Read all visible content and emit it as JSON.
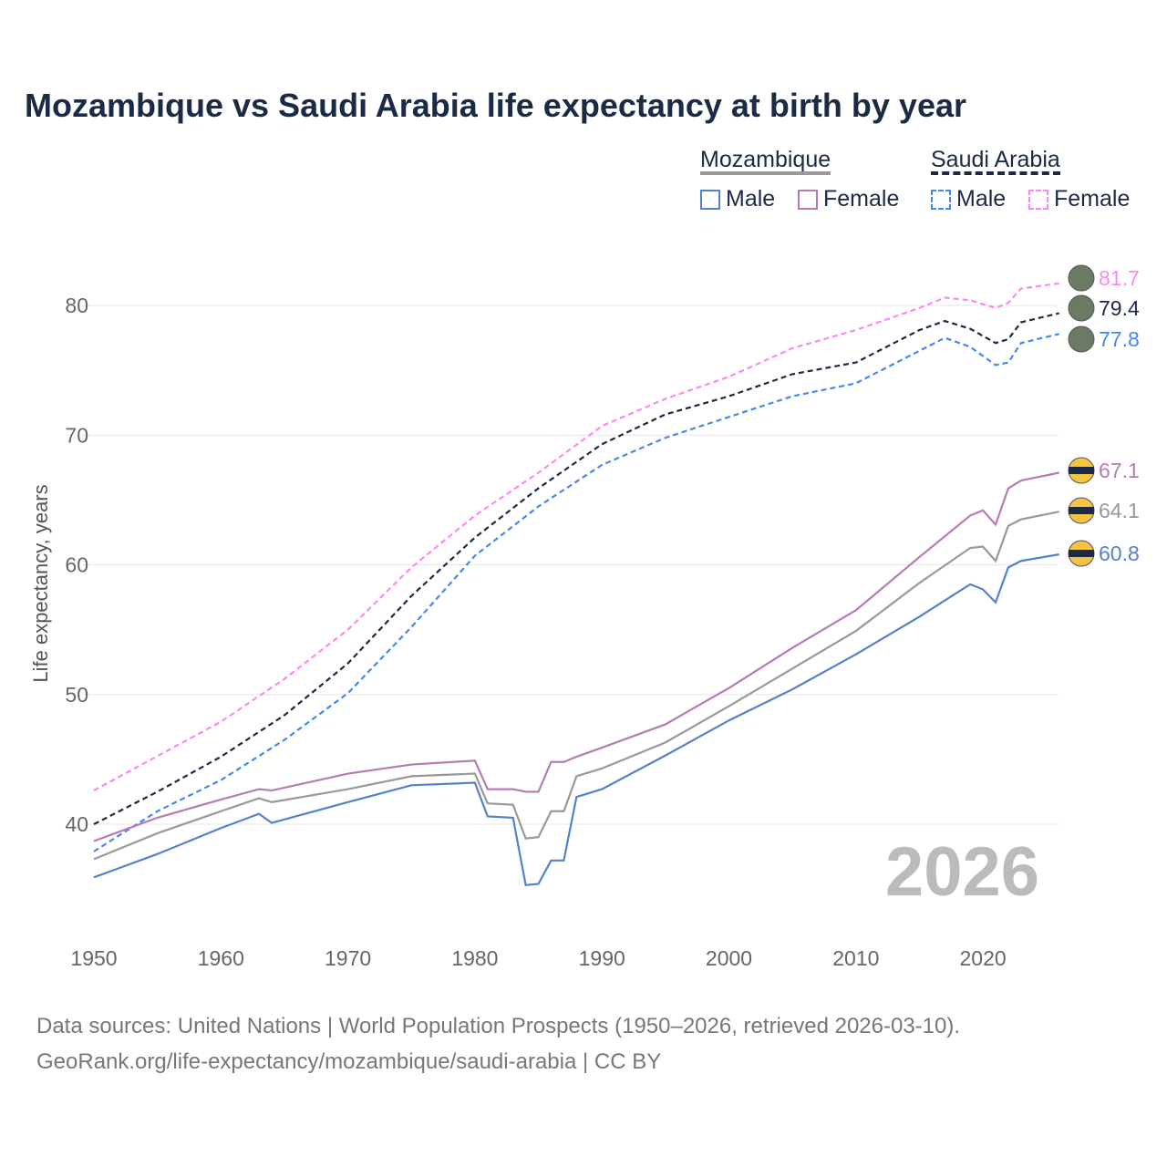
{
  "chart_data": {
    "type": "line",
    "title": "Mozambique vs Saudi Arabia life expectancy at birth by year",
    "xlabel": "",
    "ylabel": "Life expectancy, years",
    "xlim": [
      1950,
      2026
    ],
    "ylim": [
      32,
      84
    ],
    "xticks": [
      1950,
      1960,
      1970,
      1980,
      1990,
      2000,
      2010,
      2020
    ],
    "yticks": [
      40,
      50,
      60,
      70,
      80
    ],
    "grid": true,
    "year_watermark": "2026",
    "legend": {
      "groups": [
        {
          "name": "Mozambique",
          "items": [
            "Male",
            "Female"
          ]
        },
        {
          "name": "Saudi Arabia",
          "items": [
            "Male",
            "Female"
          ]
        }
      ],
      "placement": "top-right"
    },
    "series": [
      {
        "name": "Saudi Arabia Female",
        "color": "#ff88ee",
        "dash": true,
        "end_label": "81.7",
        "x": [
          1950,
          1960,
          1965,
          1970,
          1975,
          1980,
          1985,
          1990,
          1995,
          2000,
          2005,
          2010,
          2015,
          2017,
          2019,
          2021,
          2022,
          2023,
          2026
        ],
        "y": [
          42.6,
          47.9,
          51.2,
          55.0,
          59.8,
          63.8,
          67.1,
          70.7,
          72.8,
          74.5,
          76.7,
          78.1,
          79.8,
          80.6,
          80.4,
          79.8,
          80.2,
          81.3,
          81.7
        ]
      },
      {
        "name": "Saudi Arabia",
        "color": "#1b2a45",
        "dash": true,
        "end_label": "79.4",
        "x": [
          1950,
          1955,
          1960,
          1965,
          1970,
          1975,
          1980,
          1985,
          1990,
          1995,
          2000,
          2005,
          2010,
          2015,
          2017,
          2019,
          2021,
          2022,
          2023,
          2026
        ],
        "y": [
          40.0,
          42.5,
          45.2,
          48.4,
          52.4,
          57.6,
          62.1,
          65.9,
          69.3,
          71.6,
          73.0,
          74.7,
          75.6,
          78.1,
          78.8,
          78.2,
          77.1,
          77.4,
          78.7,
          79.4
        ]
      },
      {
        "name": "Saudi Arabia Male",
        "color": "#4488ee",
        "dash": true,
        "end_label": "77.8",
        "x": [
          1950,
          1955,
          1960,
          1965,
          1970,
          1975,
          1980,
          1985,
          1990,
          1995,
          2000,
          2005,
          2010,
          2015,
          2017,
          2019,
          2021,
          2022,
          2023,
          2026
        ],
        "y": [
          37.9,
          41.0,
          43.4,
          46.5,
          50.1,
          55.2,
          60.7,
          64.5,
          67.7,
          69.8,
          71.4,
          73.0,
          74.0,
          76.5,
          77.5,
          76.8,
          75.4,
          75.6,
          77.1,
          77.8
        ]
      },
      {
        "name": "Mozambique Female",
        "color": "#b57bb5",
        "dash": false,
        "end_label": "67.1",
        "x": [
          1950,
          1955,
          1960,
          1963,
          1964,
          1970,
          1975,
          1980,
          1981,
          1983,
          1984,
          1985,
          1986,
          1987,
          1988,
          1990,
          1995,
          2000,
          2005,
          2010,
          2015,
          2019,
          2020,
          2021,
          2022,
          2023,
          2026
        ],
        "y": [
          38.7,
          40.5,
          41.9,
          42.7,
          42.6,
          43.9,
          44.6,
          44.9,
          42.7,
          42.7,
          42.5,
          42.5,
          44.8,
          44.8,
          45.2,
          45.9,
          47.7,
          50.5,
          53.6,
          56.5,
          60.6,
          63.8,
          64.2,
          63.1,
          65.9,
          66.5,
          67.1
        ]
      },
      {
        "name": "Mozambique",
        "color": "#999999",
        "dash": false,
        "end_label": "64.1",
        "x": [
          1950,
          1955,
          1960,
          1963,
          1964,
          1970,
          1975,
          1980,
          1981,
          1983,
          1984,
          1985,
          1986,
          1987,
          1988,
          1990,
          1995,
          2000,
          2005,
          2010,
          2015,
          2019,
          2020,
          2021,
          2022,
          2023,
          2026
        ],
        "y": [
          37.3,
          39.3,
          41.0,
          42.0,
          41.7,
          42.7,
          43.7,
          43.9,
          41.6,
          41.5,
          38.9,
          39.0,
          41.0,
          41.0,
          43.7,
          44.3,
          46.3,
          49.1,
          52.0,
          54.9,
          58.6,
          61.3,
          61.4,
          60.3,
          63.0,
          63.5,
          64.1
        ]
      },
      {
        "name": "Mozambique Male",
        "color": "#5580cc",
        "dash": false,
        "end_label": "60.8",
        "x": [
          1950,
          1955,
          1960,
          1963,
          1964,
          1970,
          1975,
          1980,
          1981,
          1983,
          1984,
          1985,
          1986,
          1987,
          1988,
          1990,
          1995,
          2000,
          2005,
          2010,
          2015,
          2019,
          2020,
          2021,
          2022,
          2023,
          2026
        ],
        "y": [
          35.9,
          37.7,
          39.7,
          40.8,
          40.1,
          41.7,
          43.0,
          43.2,
          40.6,
          40.5,
          35.3,
          35.4,
          37.2,
          37.2,
          42.1,
          42.7,
          45.3,
          48.0,
          50.4,
          53.1,
          56.0,
          58.5,
          58.1,
          57.1,
          59.8,
          60.3,
          60.8
        ]
      }
    ]
  },
  "legend": {
    "moz": "Mozambique",
    "sau": "Saudi Arabia",
    "male": "Male",
    "female": "Female"
  },
  "source": {
    "line1": "Data sources: United Nations | World Population Prospects (1950–2026, retrieved 2026-03-10).",
    "line2": "GeoRank.org/life-expectancy/mozambique/saudi-arabia | CC BY"
  }
}
